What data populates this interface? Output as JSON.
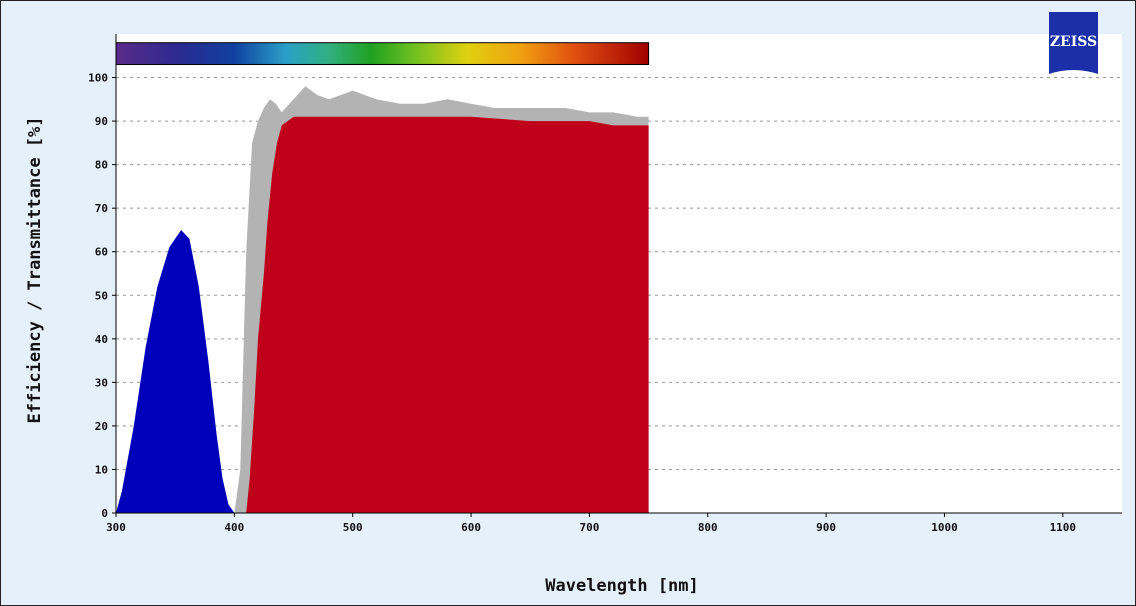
{
  "brand": {
    "logo_text": "ZEISS",
    "logo_color": "#1a2fa8"
  },
  "colors": {
    "background": "#e6f0fa",
    "plot_background": "#ffffff",
    "gridline": "#9a9a9a",
    "excitation": "#0000bb",
    "emission": "#c0001a",
    "filter": "#b3b3b3"
  },
  "chart_data": {
    "type": "area",
    "xlabel": "Wavelength [nm]",
    "ylabel": "Efficiency / Transmittance [%]",
    "xlim": [
      300,
      1150
    ],
    "ylim": [
      0,
      110
    ],
    "x_ticks": [
      300,
      400,
      500,
      600,
      700,
      800,
      900,
      1000,
      1100
    ],
    "y_ticks": [
      0,
      10,
      20,
      30,
      40,
      50,
      60,
      70,
      80,
      90,
      100
    ],
    "grid": "horizontal dashed",
    "spectrum_bar": {
      "x_range": [
        300,
        750
      ],
      "y_range": [
        103,
        108
      ]
    },
    "series": [
      {
        "key": "filter",
        "color": "#b3b3b3",
        "points": [
          [
            300,
            0
          ],
          [
            320,
            20
          ],
          [
            340,
            50
          ],
          [
            355,
            63
          ],
          [
            365,
            55
          ],
          [
            380,
            25
          ],
          [
            390,
            5
          ],
          [
            395,
            1
          ],
          [
            400,
            0
          ],
          [
            405,
            10
          ],
          [
            410,
            60
          ],
          [
            415,
            85
          ],
          [
            420,
            90
          ],
          [
            425,
            93
          ],
          [
            430,
            95
          ],
          [
            435,
            94
          ],
          [
            440,
            92
          ],
          [
            450,
            95
          ],
          [
            460,
            98
          ],
          [
            470,
            96
          ],
          [
            480,
            95
          ],
          [
            490,
            96
          ],
          [
            500,
            97
          ],
          [
            510,
            96
          ],
          [
            520,
            95
          ],
          [
            540,
            94
          ],
          [
            560,
            94
          ],
          [
            580,
            95
          ],
          [
            600,
            94
          ],
          [
            620,
            93
          ],
          [
            650,
            93
          ],
          [
            680,
            93
          ],
          [
            700,
            92
          ],
          [
            720,
            92
          ],
          [
            740,
            91
          ],
          [
            750,
            91
          ],
          [
            750,
            0
          ]
        ]
      },
      {
        "key": "excitation",
        "color": "#0000bb",
        "points": [
          [
            300,
            0
          ],
          [
            305,
            5
          ],
          [
            315,
            20
          ],
          [
            325,
            38
          ],
          [
            335,
            52
          ],
          [
            345,
            61
          ],
          [
            355,
            65
          ],
          [
            362,
            63
          ],
          [
            370,
            52
          ],
          [
            378,
            35
          ],
          [
            385,
            18
          ],
          [
            390,
            8
          ],
          [
            395,
            2
          ],
          [
            400,
            0
          ]
        ]
      },
      {
        "key": "emission",
        "color": "#c0001a",
        "points": [
          [
            410,
            0
          ],
          [
            413,
            8
          ],
          [
            417,
            25
          ],
          [
            420,
            40
          ],
          [
            425,
            55
          ],
          [
            428,
            67
          ],
          [
            432,
            78
          ],
          [
            436,
            85
          ],
          [
            440,
            89
          ],
          [
            445,
            90
          ],
          [
            450,
            91
          ],
          [
            460,
            91
          ],
          [
            480,
            91
          ],
          [
            500,
            91
          ],
          [
            550,
            91
          ],
          [
            600,
            91
          ],
          [
            650,
            90
          ],
          [
            700,
            90
          ],
          [
            720,
            89
          ],
          [
            750,
            89
          ],
          [
            750,
            0
          ]
        ]
      }
    ]
  }
}
